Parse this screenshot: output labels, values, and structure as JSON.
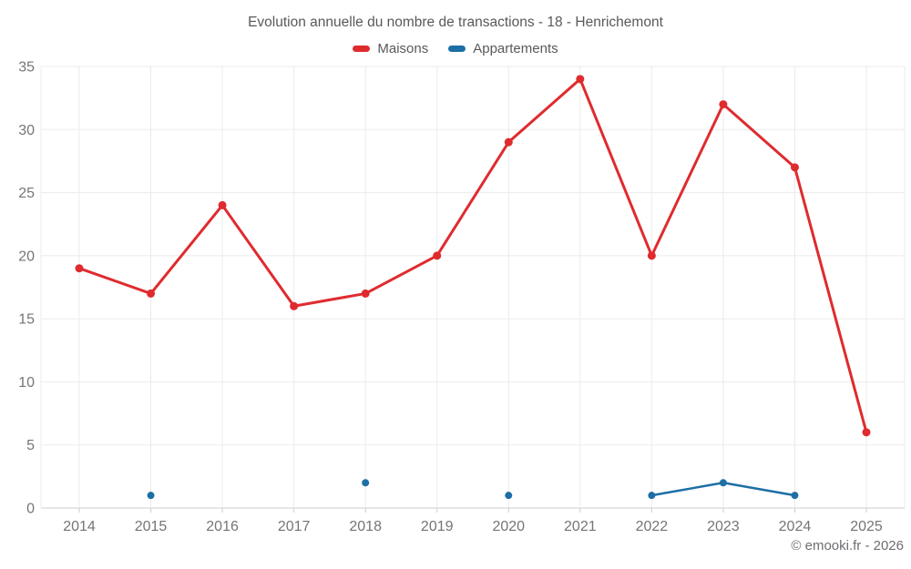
{
  "chart_data": {
    "type": "line",
    "title": "Evolution annuelle du nombre de transactions - 18 - Henrichemont",
    "x": [
      "2014",
      "2015",
      "2016",
      "2017",
      "2018",
      "2019",
      "2020",
      "2021",
      "2022",
      "2023",
      "2024",
      "2025"
    ],
    "series": [
      {
        "name": "Maisons",
        "color": "#df2b2e",
        "values": [
          19,
          17,
          24,
          16,
          17,
          20,
          29,
          34,
          20,
          32,
          27,
          6
        ]
      },
      {
        "name": "Appartements",
        "color": "#1d6fa5",
        "values": [
          null,
          1,
          null,
          null,
          2,
          null,
          1,
          null,
          1,
          2,
          1,
          null
        ]
      }
    ],
    "xlabel": "",
    "ylabel": "",
    "ylim": [
      0,
      35
    ],
    "ytick_step": 5,
    "grid": true,
    "legend_position": "top"
  },
  "footer": {
    "copyright": "© emooki.fr - 2026"
  }
}
